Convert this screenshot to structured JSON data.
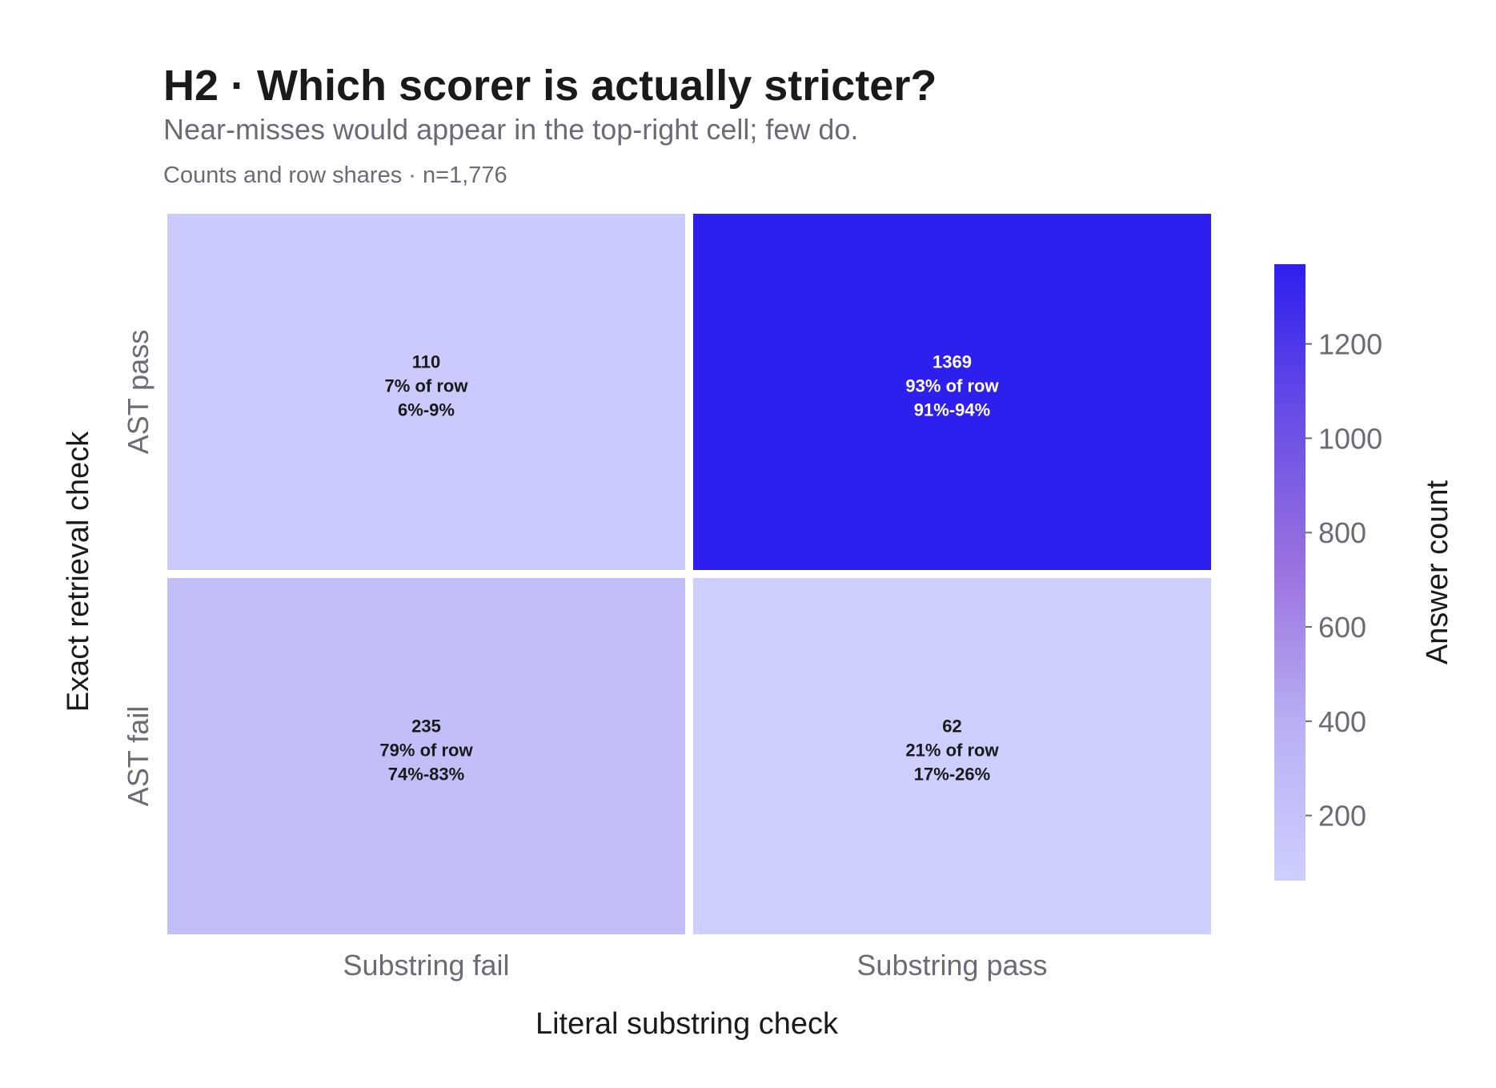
{
  "chart_data": {
    "type": "heatmap",
    "title": "H2 · Which scorer is actually stricter?",
    "subtitle": "Near-misses would appear in the top-right cell; few do.",
    "caption": "Counts and row shares · n=1,776",
    "xlabel": "Literal substring check",
    "ylabel": "Exact retrieval check",
    "x_categories": [
      "Substring fail",
      "Substring pass"
    ],
    "y_categories": [
      "AST pass",
      "AST fail"
    ],
    "cells": [
      {
        "row": "AST pass",
        "col": "Substring fail",
        "count": 110,
        "label": "110",
        "share_label": "7% of row",
        "ci_label": "6%-9%"
      },
      {
        "row": "AST pass",
        "col": "Substring pass",
        "count": 1369,
        "label": "1369",
        "share_label": "93% of row",
        "ci_label": "91%-94%"
      },
      {
        "row": "AST fail",
        "col": "Substring fail",
        "count": 235,
        "label": "235",
        "share_label": "79% of row",
        "ci_label": "74%-83%"
      },
      {
        "row": "AST fail",
        "col": "Substring pass",
        "count": 62,
        "label": "62",
        "share_label": "21% of row",
        "ci_label": "17%-26%"
      }
    ],
    "colorbar": {
      "label": "Answer count",
      "range": [
        62,
        1369
      ],
      "ticks": [
        200,
        400,
        600,
        800,
        1000,
        1200
      ],
      "colors": [
        "#cdcffe",
        "#b9b0f3",
        "#9a73df",
        "#6a4ee6",
        "#2d1fee"
      ]
    },
    "grid": false,
    "legend": "colorbar-right"
  }
}
